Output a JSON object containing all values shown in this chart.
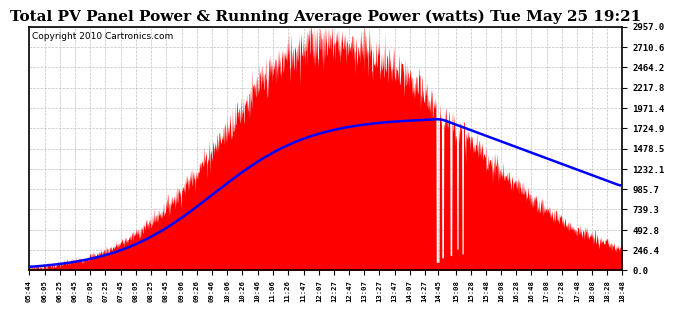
{
  "title": "Total PV Panel Power & Running Average Power (watts) Tue May 25 19:21",
  "copyright": "Copyright 2010 Cartronics.com",
  "yticks": [
    0.0,
    246.4,
    492.8,
    739.3,
    985.7,
    1232.1,
    1478.5,
    1724.9,
    1971.4,
    2217.8,
    2464.2,
    2710.6,
    2957.0
  ],
  "ymax": 2957.0,
  "ymin": 0.0,
  "xtick_labels": [
    "05:44",
    "06:05",
    "06:25",
    "06:45",
    "07:05",
    "07:25",
    "07:45",
    "08:05",
    "08:25",
    "08:45",
    "09:06",
    "09:26",
    "09:46",
    "10:06",
    "10:26",
    "10:46",
    "11:06",
    "11:26",
    "11:47",
    "12:07",
    "12:27",
    "12:47",
    "13:07",
    "13:27",
    "13:47",
    "14:07",
    "14:27",
    "14:45",
    "15:08",
    "15:28",
    "15:48",
    "16:08",
    "16:28",
    "16:48",
    "17:08",
    "17:28",
    "17:48",
    "18:08",
    "18:28",
    "18:48"
  ],
  "bar_color": "#FF0000",
  "line_color": "#0000FF",
  "grid_color": "#BBBBBB",
  "background_color": "#FFFFFF",
  "title_fontsize": 11,
  "copyright_fontsize": 6.5,
  "peak_power": 2780,
  "avg_peak_power": 1850,
  "peak_time_min": 390,
  "avg_peak_time_min": 540,
  "sigma_rise": 130,
  "sigma_fall": 180
}
